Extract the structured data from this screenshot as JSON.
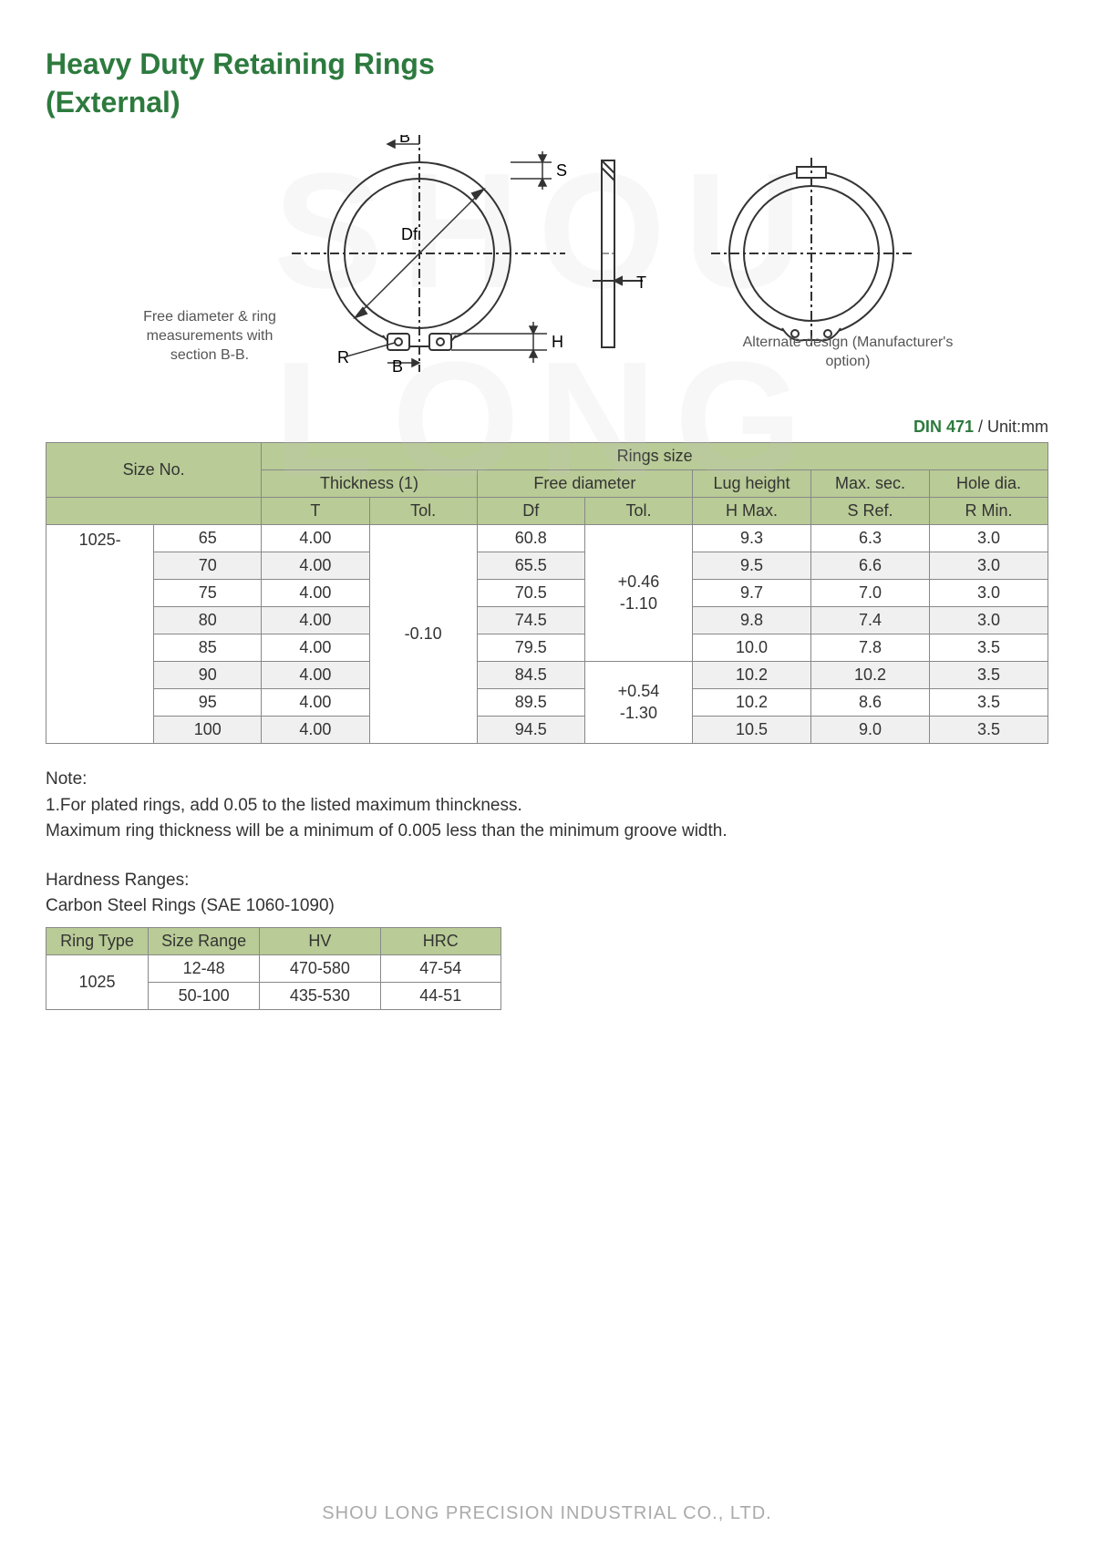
{
  "colors": {
    "title_green": "#2d7a3e",
    "header_bg": "#b9cb96",
    "alt_row": "#f0f0f0",
    "border": "#888888",
    "text": "#333333",
    "watermark": "rgba(200,200,200,0.15)",
    "footer": "#aaaaaa"
  },
  "title_line1": "Heavy Duty Retaining Rings",
  "title_line2": "(External)",
  "watermark_text": "SHOU LONG",
  "diagram": {
    "caption_left": "Free diameter & ring measurements with section B-B.",
    "caption_right": "Alternate design (Manufacturer's option)",
    "labels": {
      "B1": "B",
      "B2": "B",
      "S": "S",
      "Df": "Df",
      "T": "T",
      "H": "H",
      "R": "R"
    }
  },
  "standard": {
    "code": "DIN 471",
    "unit": " / Unit:mm"
  },
  "main_table": {
    "header": {
      "size_no": "Size No.",
      "rings_size": "Rings size",
      "thickness": "Thickness (1)",
      "free_dia": "Free diameter",
      "lug_height": "Lug height",
      "max_sec": "Max. sec.",
      "hole_dia": "Hole dia.",
      "T": "T",
      "Tol": "Tol.",
      "Df": "Df",
      "H": "H Max.",
      "S": "S Ref.",
      "R": "R Min."
    },
    "size_prefix": "1025-",
    "t_tol": "-0.10",
    "df_tol1": "+0.46\n-1.10",
    "df_tol2": "+0.54\n-1.30",
    "rows": [
      {
        "size": "65",
        "T": "4.00",
        "Df": "60.8",
        "H": "9.3",
        "S": "6.3",
        "R": "3.0",
        "alt": false
      },
      {
        "size": "70",
        "T": "4.00",
        "Df": "65.5",
        "H": "9.5",
        "S": "6.6",
        "R": "3.0",
        "alt": true
      },
      {
        "size": "75",
        "T": "4.00",
        "Df": "70.5",
        "H": "9.7",
        "S": "7.0",
        "R": "3.0",
        "alt": false
      },
      {
        "size": "80",
        "T": "4.00",
        "Df": "74.5",
        "H": "9.8",
        "S": "7.4",
        "R": "3.0",
        "alt": true
      },
      {
        "size": "85",
        "T": "4.00",
        "Df": "79.5",
        "H": "10.0",
        "S": "7.8",
        "R": "3.5",
        "alt": false
      },
      {
        "size": "90",
        "T": "4.00",
        "Df": "84.5",
        "H": "10.2",
        "S": "10.2",
        "R": "3.5",
        "alt": true
      },
      {
        "size": "95",
        "T": "4.00",
        "Df": "89.5",
        "H": "10.2",
        "S": "8.6",
        "R": "3.5",
        "alt": false
      },
      {
        "size": "100",
        "T": "4.00",
        "Df": "94.5",
        "H": "10.5",
        "S": "9.0",
        "R": "3.5",
        "alt": true
      }
    ]
  },
  "notes": {
    "title": "Note:",
    "line1": "1.For plated rings, add 0.05 to the listed maximum thinckness.",
    "line2": "Maximum ring thickness will be a minimum of 0.005 less than the minimum groove width."
  },
  "hardness": {
    "title1": "Hardness Ranges:",
    "title2": "Carbon Steel Rings (SAE 1060-1090)",
    "header": {
      "type": "Ring Type",
      "range": "Size Range",
      "hv": "HV",
      "hrc": "HRC"
    },
    "type": "1025",
    "rows": [
      {
        "range": "12-48",
        "hv": "470-580",
        "hrc": "47-54"
      },
      {
        "range": "50-100",
        "hv": "435-530",
        "hrc": "44-51"
      }
    ]
  },
  "footer": "SHOU LONG PRECISION INDUSTRIAL CO., LTD."
}
